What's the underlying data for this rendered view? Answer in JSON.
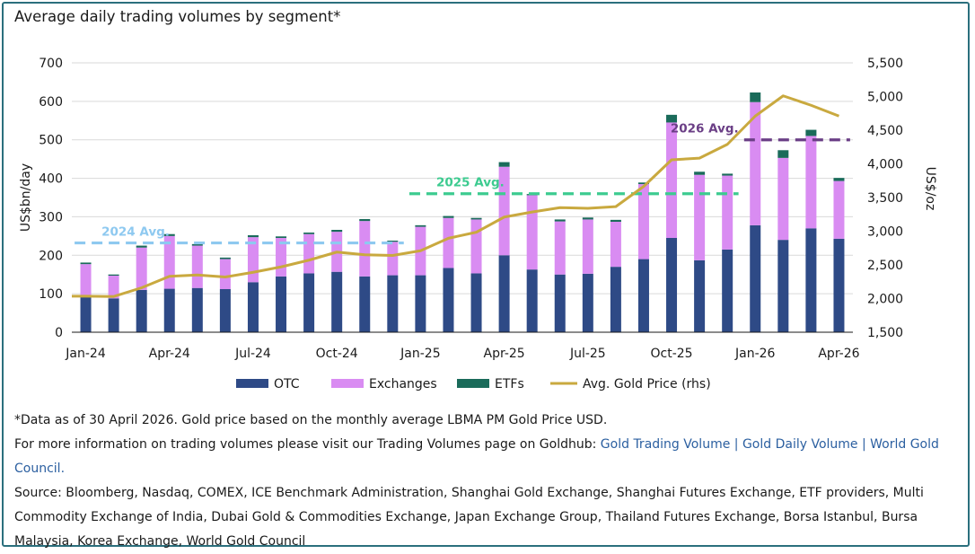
{
  "title": "Average daily trading volumes by segment*",
  "notes": {
    "asterisk": "*Data as of 30 April 2026. Gold price based on the monthly average LBMA PM Gold Price USD.",
    "more_info": "For more information on trading volumes please visit our Trading Volumes page on Goldhub: ",
    "link_text": "Gold Trading Volume | Gold Daily Volume | World Gold Council.",
    "source": "Source: Bloomberg, Nasdaq, COMEX, ICE Benchmark Administration, Shanghai Gold Exchange, Shanghai Futures Exchange, ETF providers, Multi Commodity Exchange of India, Dubai Gold & Commodities Exchange, Japan Exchange Group, Thailand Futures Exchange, Borsa Istanbul, Bursa Malaysia, Korea Exchange, World Gold Council"
  },
  "chart_data": {
    "type": "bar",
    "stacked": true,
    "categories": [
      "Jan-24",
      "Feb-24",
      "Mar-24",
      "Apr-24",
      "May-24",
      "Jun-24",
      "Jul-24",
      "Aug-24",
      "Sep-24",
      "Oct-24",
      "Nov-24",
      "Dec-24",
      "Jan-25",
      "Feb-25",
      "Mar-25",
      "Apr-25",
      "May-25",
      "Jun-25",
      "Jul-25",
      "Aug-25",
      "Sep-25",
      "Oct-25",
      "Nov-25",
      "Dec-25",
      "Jan-26",
      "Feb-26",
      "Mar-26",
      "Apr-26"
    ],
    "x_tick_labels": [
      "Jan-24",
      "Apr-24",
      "Jul-24",
      "Oct-24",
      "Jan-25",
      "Apr-25",
      "Jul-25",
      "Oct-25",
      "Jan-26",
      "Apr-26"
    ],
    "series": [
      {
        "name": "OTC",
        "color": "#2e4a86",
        "values": [
          93,
          88,
          110,
          113,
          115,
          112,
          130,
          145,
          153,
          157,
          145,
          148,
          148,
          167,
          153,
          200,
          163,
          150,
          152,
          170,
          190,
          245,
          187,
          215,
          278,
          240,
          270,
          243
        ]
      },
      {
        "name": "Exchanges",
        "color": "#d98cf2",
        "values": [
          84,
          59,
          110,
          137,
          110,
          78,
          117,
          100,
          102,
          104,
          144,
          87,
          126,
          130,
          140,
          230,
          193,
          138,
          141,
          117,
          195,
          300,
          222,
          192,
          320,
          213,
          240,
          150
        ]
      },
      {
        "name": "ETFs",
        "color": "#1a6b5a",
        "values": [
          4,
          3,
          5,
          5,
          4,
          4,
          5,
          4,
          4,
          5,
          5,
          3,
          4,
          5,
          4,
          12,
          3,
          5,
          5,
          5,
          4,
          20,
          8,
          5,
          25,
          20,
          16,
          8
        ]
      },
      {
        "name": "Avg. Gold Price (rhs)",
        "color": "#c9a93f",
        "type": "line",
        "axis": "right",
        "values": [
          2035,
          2030,
          2160,
          2330,
          2350,
          2320,
          2390,
          2470,
          2570,
          2690,
          2650,
          2640,
          2710,
          2895,
          2985,
          3210,
          3285,
          3350,
          3340,
          3365,
          3665,
          4060,
          4085,
          4290,
          4710,
          5010,
          4870,
          4710
        ]
      }
    ],
    "averages": [
      {
        "label": "2024 Avg.",
        "value": 232,
        "color": "#8ec9f0",
        "from": "Jan-24",
        "to": "Dec-24"
      },
      {
        "label": "2025 Avg.",
        "value": 360,
        "color": "#3dcb90",
        "from": "Jan-25",
        "to": "Dec-25"
      },
      {
        "label": "2026 Avg.",
        "value": 500,
        "color": "#6b3f86",
        "from": "Jan-26",
        "to": "Apr-26"
      }
    ],
    "ylabel": "US$bn/day",
    "ylim": [
      0,
      700
    ],
    "yticks": [
      0,
      100,
      200,
      300,
      400,
      500,
      600,
      700
    ],
    "y2label": "US$/oz",
    "y2lim": [
      1500,
      5500
    ],
    "y2ticks": [
      "1,500",
      "2,000",
      "2,500",
      "3,000",
      "3,500",
      "4,000",
      "4,500",
      "5,000",
      "5,500"
    ],
    "grid": true,
    "legend_position": "bottom"
  }
}
